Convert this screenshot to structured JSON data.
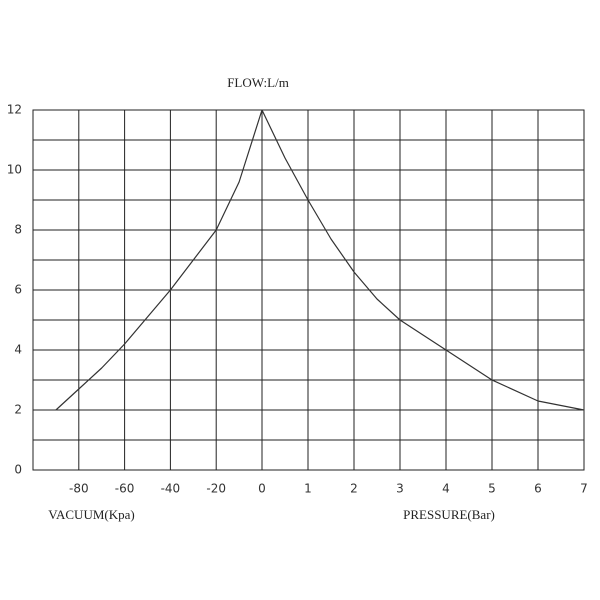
{
  "chart_data": {
    "type": "line",
    "title": "FLOW:L/m",
    "ylim": [
      0,
      12
    ],
    "yticks": [
      0,
      2,
      4,
      6,
      8,
      10,
      12
    ],
    "minor_yticks": [
      1,
      3,
      5,
      7,
      9,
      11
    ],
    "grid": true,
    "color": "#333333",
    "panels": [
      {
        "xlabel": "VACUUM(Kpa)",
        "xlim": [
          -100,
          0
        ],
        "xticks": [
          -80,
          -60,
          -40,
          -20,
          0
        ],
        "x": [
          -90,
          -80,
          -70,
          -60,
          -50,
          -40,
          -30,
          -20,
          -10,
          0
        ],
        "values": [
          2,
          2.7,
          3.4,
          4.2,
          5.1,
          6,
          7,
          8,
          9.6,
          12
        ]
      },
      {
        "xlabel": "PRESSURE(Bar)",
        "xlim": [
          0,
          7
        ],
        "xticks": [
          1,
          2,
          3,
          4,
          5,
          6,
          7
        ],
        "x": [
          0,
          0.5,
          1,
          1.5,
          2,
          2.5,
          3,
          4,
          5,
          6,
          7
        ],
        "values": [
          12,
          10.4,
          9,
          7.7,
          6.6,
          5.7,
          5,
          4,
          3,
          2.3,
          2
        ]
      }
    ]
  }
}
